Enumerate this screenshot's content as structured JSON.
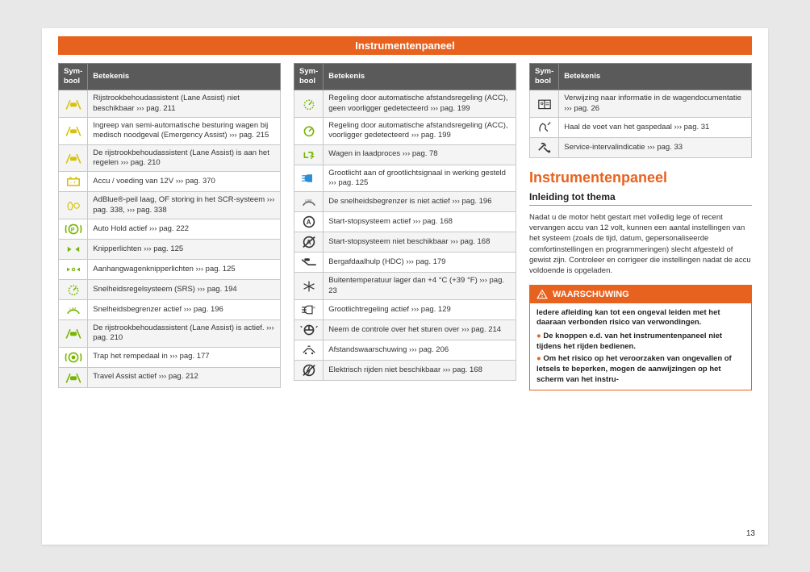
{
  "title": "Instrumentenpaneel",
  "headers": {
    "symbol": "Sym-bool",
    "meaning": "Betekenis"
  },
  "col1": [
    {
      "icon": "lane-assist-na",
      "color": "#d5c20f",
      "text": "Rijstrookbehoudassistent (Lane Assist) niet beschikbaar ››› pag. 211",
      "alt": true
    },
    {
      "icon": "emergency-steer",
      "color": "#d5c20f",
      "text": "Ingreep van semi-automatische besturing wagen bij medisch noodgeval (Emergency Assist) ››› pag. 215",
      "alt": false
    },
    {
      "icon": "lane-assist-reg",
      "color": "#d5c20f",
      "text": "De rijstrookbehoudassistent (Lane Assist) is aan het regelen ››› pag. 210",
      "alt": true
    },
    {
      "icon": "battery",
      "color": "#d5c20f",
      "text": "Accu / voeding van 12V ››› pag. 370",
      "alt": false
    },
    {
      "icon": "adblue",
      "color": "#d5c20f",
      "text": "AdBlue®-peil laag, OF storing in het SCR-systeem ››› pag. 338, ››› pag. 338",
      "alt": true
    },
    {
      "icon": "autohold",
      "color": "#78b400",
      "text": "Auto Hold actief ››› pag. 222",
      "alt": false
    },
    {
      "icon": "turn-signals",
      "color": "#78b400",
      "text": "Knipperlichten ››› pag. 125",
      "alt": true
    },
    {
      "icon": "trailer-signals",
      "color": "#78b400",
      "text": "Aanhangwagenknipperlichten ››› pag. 125",
      "alt": false
    },
    {
      "icon": "cruise",
      "color": "#78b400",
      "text": "Snelheidsregelsysteem (SRS) ››› pag. 194",
      "alt": true
    },
    {
      "icon": "speed-limiter",
      "color": "#78b400",
      "text": "Snelheidsbegrenzer actief ››› pag. 196",
      "alt": false
    },
    {
      "icon": "lane-assist-active",
      "color": "#78b400",
      "text": "De rijstrookbehoudassistent (Lane Assist) is actief. ››› pag. 210",
      "alt": true
    },
    {
      "icon": "brake-pedal",
      "color": "#78b400",
      "text": "Trap het rempedaal in ››› pag. 177",
      "alt": false
    },
    {
      "icon": "travel-assist",
      "color": "#78b400",
      "text": "Travel Assist actief ››› pag. 212",
      "alt": true
    }
  ],
  "col2": [
    {
      "icon": "acc-no-lead",
      "color": "#78b400",
      "text": "Regeling door automatische afstandsregeling (ACC), geen voorligger gedetecteerd ››› pag. 199",
      "alt": true
    },
    {
      "icon": "acc-lead",
      "color": "#78b400",
      "text": "Regeling door automatische afstandsregeling (ACC), voorligger gedetecteerd ››› pag. 199",
      "alt": false
    },
    {
      "icon": "charging",
      "color": "#78b400",
      "text": "Wagen in laadproces ››› pag. 78",
      "alt": true
    },
    {
      "icon": "high-beam",
      "color": "#2b8ed6",
      "text": "Grootlicht aan of grootlichtsignaal in werking gesteld ››› pag. 125",
      "alt": false
    },
    {
      "icon": "limiter-off",
      "color": "#666666",
      "text": "De snelheidsbegrenzer is niet actief ››› pag. 196",
      "alt": true
    },
    {
      "icon": "start-stop-on",
      "color": "#333333",
      "text": "Start-stopsysteem actief ››› pag. 168",
      "alt": false
    },
    {
      "icon": "start-stop-na",
      "color": "#333333",
      "text": "Start-stopsysteem niet beschikbaar ››› pag. 168",
      "alt": true
    },
    {
      "icon": "hdc",
      "color": "#333333",
      "text": "Bergafdaalhulp (HDC) ››› pag. 179",
      "alt": false
    },
    {
      "icon": "frost",
      "color": "#333333",
      "text": "Buitentemperatuur lager dan +4 °C (+39 °F) ››› pag. 23",
      "alt": true
    },
    {
      "icon": "auto-high-beam",
      "color": "#333333",
      "text": "Grootlichtregeling actief ››› pag. 129",
      "alt": false
    },
    {
      "icon": "take-steering",
      "color": "#333333",
      "text": "Neem de controle over het sturen over ››› pag. 214",
      "alt": true
    },
    {
      "icon": "distance-warn",
      "color": "#333333",
      "text": "Afstandswaarschuwing ››› pag. 206",
      "alt": false
    },
    {
      "icon": "ev-na",
      "color": "#333333",
      "text": "Elektrisch rijden niet beschikbaar ››› pag. 168",
      "alt": true
    }
  ],
  "col3": [
    {
      "icon": "manual",
      "color": "#333333",
      "text": "Verwijzing naar informatie in de wagendocumentatie ››› pag. 26",
      "alt": true
    },
    {
      "icon": "foot-off",
      "color": "#333333",
      "text": "Haal de voet van het gaspedaal ››› pag. 31",
      "alt": false
    },
    {
      "icon": "service",
      "color": "#333333",
      "text": "Service-intervalindicatie ››› pag. 33",
      "alt": true
    }
  ],
  "section": {
    "heading": "Instrumentenpaneel",
    "sub": "Inleiding tot thema",
    "body": "Nadat u de motor hebt gestart met volledig lege of recent vervangen accu van 12 volt, kunnen een aantal instellingen van het systeem (zoals de tijd, datum, gepersonaliseerde comfortinstellingen en programmeringen) slecht afgesteld of gewist zijn. Controleer en corrigeer die instellingen nadat de accu voldoende is opgeladen."
  },
  "warning": {
    "label": "WAARSCHUWING",
    "lead": "Iedere afleiding kan tot een ongeval leiden met het daaraan verbonden risico van verwondingen.",
    "items": [
      "De knoppen e.d. van het instrumentenpaneel niet tijdens het rijden bedienen.",
      "Om het risico op het veroorzaken van ongevallen of letsels te beperken, mogen de aanwijzingen op het scherm van het instru-"
    ]
  },
  "pageNumber": "13"
}
